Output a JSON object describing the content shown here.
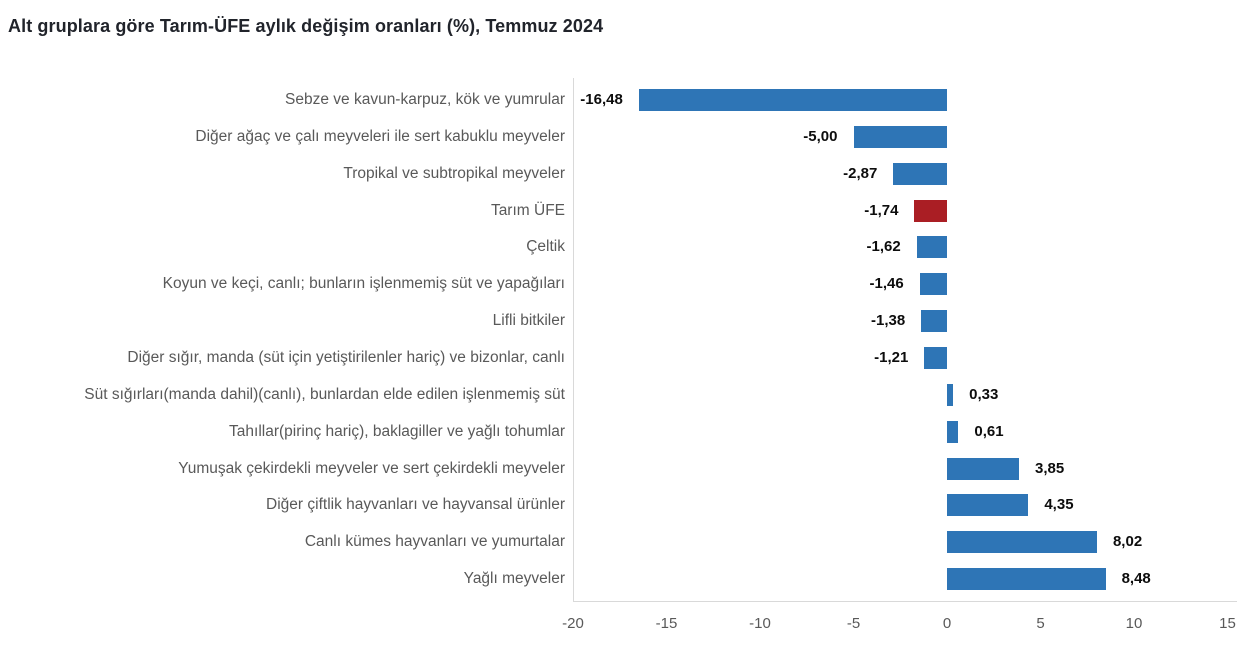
{
  "chart_data": {
    "type": "bar",
    "orientation": "horizontal",
    "title": "Alt gruplara göre Tarım-ÜFE aylık değişim oranları (%), Temmuz 2024",
    "categories": [
      "Sebze ve kavun-karpuz, kök ve yumrular",
      "Diğer ağaç ve çalı meyveleri ile sert kabuklu meyveler",
      "Tropikal ve subtropikal meyveler",
      "Tarım ÜFE",
      "Çeltik",
      "Koyun ve keçi, canlı; bunların işlenmemiş süt ve yapağıları",
      "Lifli bitkiler",
      "Diğer sığır, manda (süt için yetiştirilenler hariç) ve bizonlar, canlı",
      "Süt sığırları(manda dahil)(canlı), bunlardan elde edilen işlenmemiş süt",
      "Tahıllar(pirinç hariç), baklagiller ve yağlı tohumlar",
      "Yumuşak çekirdekli meyveler ve sert çekirdekli meyveler",
      "Diğer çiftlik hayvanları ve hayvansal ürünler",
      "Canlı kümes hayvanları ve yumurtalar",
      "Yağlı meyveler"
    ],
    "values": [
      -16.48,
      -5.0,
      -2.87,
      -1.74,
      -1.62,
      -1.46,
      -1.38,
      -1.21,
      0.33,
      0.61,
      3.85,
      4.35,
      8.02,
      8.48
    ],
    "value_labels": [
      "-16,48",
      "-5,00",
      "-2,87",
      "-1,74",
      "-1,62",
      "-1,46",
      "-1,38",
      "-1,21",
      "0,33",
      "0,61",
      "3,85",
      "4,35",
      "8,02",
      "8,48"
    ],
    "highlight_category": "Tarım ÜFE",
    "highlight_index": 3,
    "xlim": [
      -20,
      15
    ],
    "x_ticks": [
      -20,
      -15,
      -10,
      -5,
      0,
      5,
      10,
      15
    ],
    "x_tick_labels": [
      "-20",
      "-15",
      "-10",
      "-5",
      "0",
      "5",
      "10",
      "15"
    ],
    "xlabel": "",
    "ylabel": "",
    "grid": false,
    "legend": "none",
    "colors": {
      "bar": "#2E75B6",
      "highlight": "#AA1E24",
      "axis_line": "#D9D9D9",
      "category_text": "#595959",
      "tick_text": "#595959",
      "value_text": "#0D0D0D",
      "title_text": "#21242B"
    }
  }
}
